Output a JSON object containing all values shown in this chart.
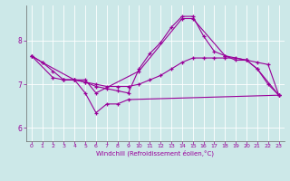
{
  "background_color": "#cce8e8",
  "grid_color": "#ffffff",
  "line_color": "#990099",
  "xlabel": "Windchill (Refroidissement éolien,°C)",
  "xlim": [
    -0.5,
    23.5
  ],
  "ylim": [
    5.7,
    8.8
  ],
  "yticks": [
    6,
    7,
    8
  ],
  "xticks": [
    0,
    1,
    2,
    3,
    4,
    5,
    6,
    7,
    8,
    9,
    10,
    11,
    12,
    13,
    14,
    15,
    16,
    17,
    18,
    19,
    20,
    21,
    22,
    23
  ],
  "series": [
    {
      "x": [
        0,
        1,
        2,
        3,
        4,
        5,
        6,
        7,
        8,
        9,
        10,
        11,
        12,
        13,
        14,
        15,
        16,
        17,
        18,
        19,
        20,
        21,
        22,
        23
      ],
      "y": [
        7.65,
        7.5,
        7.3,
        7.1,
        7.1,
        7.05,
        6.95,
        6.9,
        6.85,
        6.8,
        7.35,
        7.7,
        7.95,
        8.3,
        8.55,
        8.55,
        8.1,
        7.75,
        7.65,
        7.55,
        7.55,
        7.35,
        7.0,
        6.75
      ]
    },
    {
      "x": [
        3,
        4,
        5,
        6,
        7,
        8,
        9,
        23
      ],
      "y": [
        7.1,
        7.1,
        6.8,
        6.35,
        6.55,
        6.55,
        6.65,
        6.75
      ]
    },
    {
      "x": [
        0,
        2,
        3,
        4,
        5,
        6,
        7,
        8,
        9,
        10,
        11,
        12,
        13,
        14,
        15,
        16,
        17,
        18,
        19,
        20,
        21,
        22,
        23
      ],
      "y": [
        7.65,
        7.15,
        7.1,
        7.1,
        7.05,
        7.0,
        6.95,
        6.95,
        6.95,
        7.0,
        7.1,
        7.2,
        7.35,
        7.5,
        7.6,
        7.6,
        7.6,
        7.6,
        7.6,
        7.55,
        7.5,
        7.45,
        6.75
      ]
    },
    {
      "x": [
        0,
        1,
        4,
        5,
        6,
        10,
        14,
        15,
        18,
        20,
        21,
        23
      ],
      "y": [
        7.65,
        7.5,
        7.1,
        7.1,
        6.8,
        7.3,
        8.5,
        8.5,
        7.65,
        7.55,
        7.35,
        6.75
      ]
    }
  ]
}
